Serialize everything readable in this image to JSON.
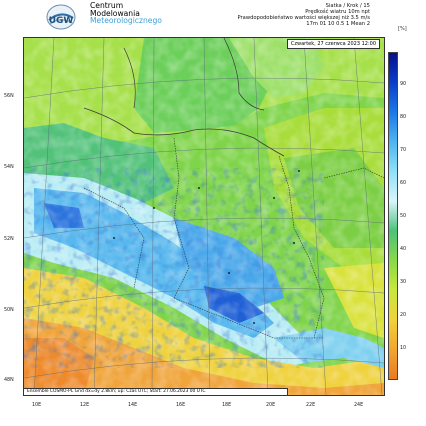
{
  "header": {
    "org_line1": "Centrum",
    "org_line2": "Modelowania",
    "org_line3": "Meteorologicznego",
    "logo_text": "UGW",
    "meta_line1": "Siatka / Krok / 15",
    "meta_line2": "Prędkość wiatru 10m npt",
    "meta_line3": "Prawdopodobieństwo wartości większej niż 3.5 m/s",
    "meta_line4": "17m  01  10     0.5  1  Mean     2",
    "unit": "[%]"
  },
  "map": {
    "date_label": "Czwartek, 27 czerwca 2023 12:00",
    "footer": "Ensemble COSMO-PL Grid dx=dy 2.8km; up: Czas UTC; Start: 27.06.2023 00 UTC",
    "lat_labels": [
      "56N",
      "54N",
      "52N",
      "50N",
      "48N"
    ],
    "lon_labels": [
      "10E",
      "12E",
      "14E",
      "16E",
      "18E",
      "20E",
      "22E",
      "24E"
    ]
  },
  "colorbar": {
    "ticks": [
      "90",
      "80",
      "70",
      "60",
      "50",
      "40",
      "30",
      "20",
      "10"
    ],
    "colors": [
      "#08108c",
      "#0a3ec8",
      "#1e78e6",
      "#4fb4f0",
      "#8fe0f8",
      "#d8f6fc",
      "#4cc27a",
      "#8ad84a",
      "#c8e83c",
      "#f0d23a",
      "#f2a630",
      "#ea7a24"
    ]
  }
}
